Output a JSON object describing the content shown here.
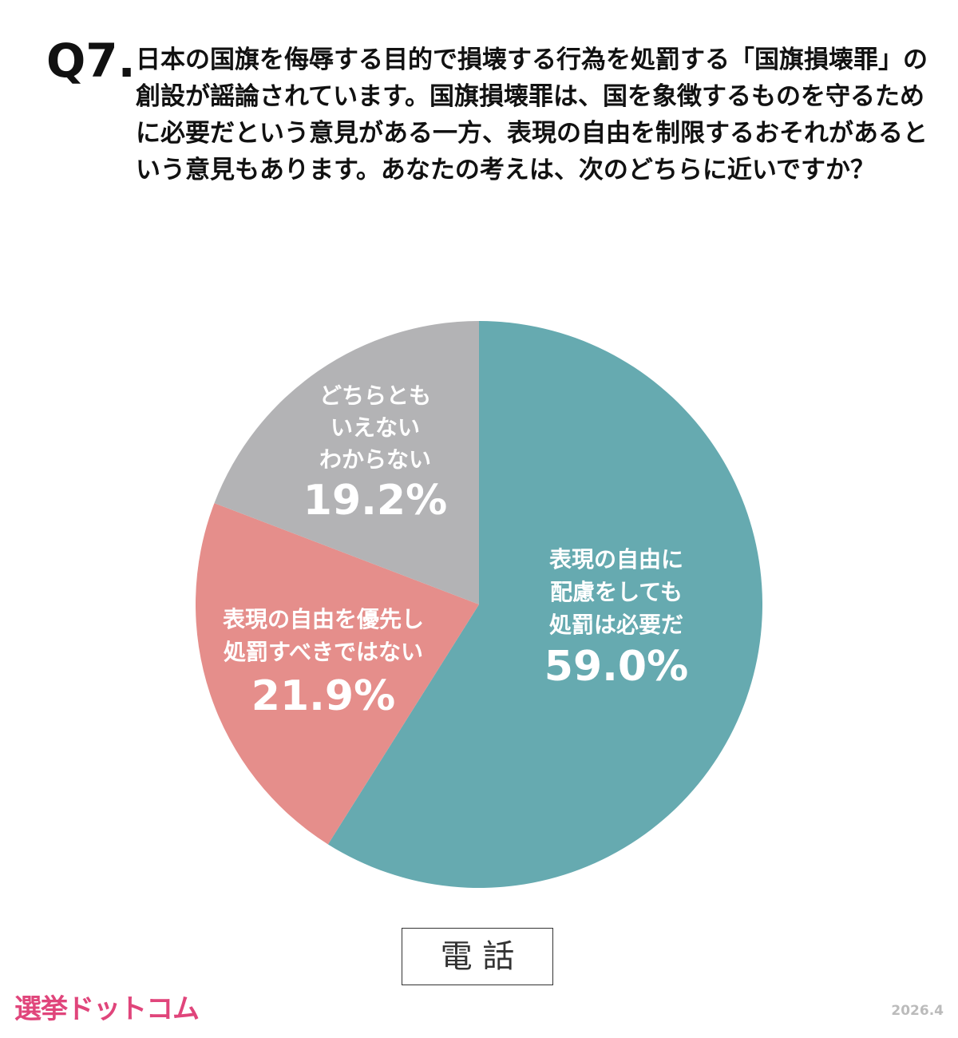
{
  "question": {
    "number": "Q7.",
    "text": "日本の国旗を侮辱する目的で損壊する行為を処罰する「国旗損壊罪」の創設が謡論されています。国旗損壊罪は、国を象徴するものを守るために必要だという意見がある一方、表現の自由を制限するおそれがあるという意見もあります。あなたの考えは、次のどちらに近いですか？"
  },
  "chart_data": {
    "type": "pie",
    "categories": [
      [
        "表現の自由に",
        "配慮をしても",
        "処罰は必要だ"
      ],
      [
        "表現の自由を優先し",
        "処罰すべきではない"
      ],
      [
        "どちらとも",
        "いえない",
        "わからない"
      ]
    ],
    "values": [
      59.0,
      21.9,
      19.2
    ],
    "value_labels": [
      "59.0%",
      "21.9%",
      "19.2%"
    ],
    "colors": [
      "#66aab0",
      "#e58e8b",
      "#b3b3b5"
    ]
  },
  "footer": {
    "method": "電 話",
    "logo": "選挙ドットコム",
    "date": "2026.4"
  }
}
